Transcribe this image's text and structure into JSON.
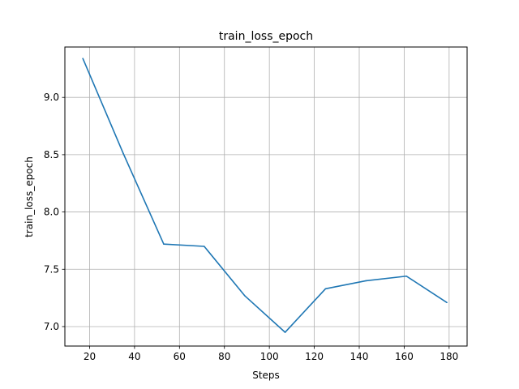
{
  "chart_data": {
    "type": "line",
    "title": "train_loss_epoch",
    "xlabel": "Steps",
    "ylabel": "train_loss_epoch",
    "xlim": [
      9,
      188
    ],
    "ylim": [
      6.83,
      9.44
    ],
    "xticks": [
      20,
      40,
      60,
      80,
      100,
      120,
      140,
      160,
      180
    ],
    "yticks": [
      7.0,
      7.5,
      8.0,
      8.5,
      9.0
    ],
    "ytick_labels": [
      "7.0",
      "7.5",
      "8.0",
      "8.5",
      "9.0"
    ],
    "grid": true,
    "series": [
      {
        "color": "#1f77b4",
        "x": [
          17,
          35,
          53,
          71,
          89,
          107,
          125,
          143,
          161,
          179
        ],
        "y": [
          9.34,
          8.51,
          7.72,
          7.7,
          7.27,
          6.95,
          7.33,
          7.4,
          7.44,
          7.21
        ]
      }
    ]
  }
}
